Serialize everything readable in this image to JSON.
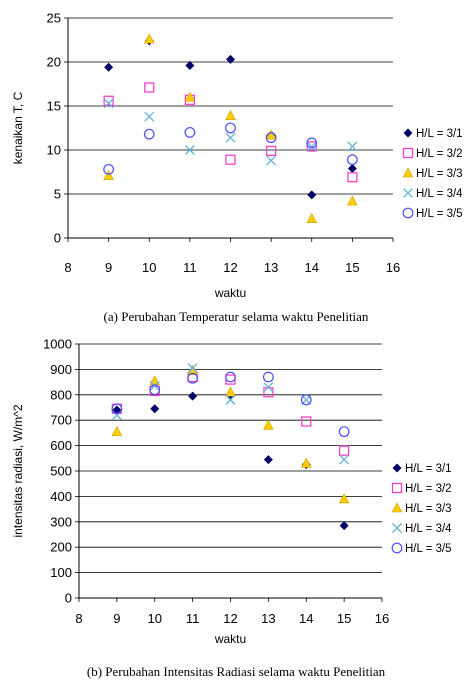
{
  "chart_data": [
    {
      "type": "scatter",
      "caption": "(a) Perubahan Temperatur selama waktu Penelitian",
      "xlabel": "waktu",
      "ylabel": "kenaikan T, C",
      "xlim": [
        8,
        16
      ],
      "ylim": [
        0,
        25
      ],
      "xticks": [
        "8",
        "9",
        "10",
        "11",
        "12",
        "13",
        "14",
        "15",
        "16"
      ],
      "yticks": [
        "0",
        "5",
        "10",
        "15",
        "20",
        "25"
      ],
      "grid": "horizontal",
      "legend_position": "right",
      "series": [
        {
          "name": "H/L = 3/1",
          "marker": "diamond-filled",
          "color": "#000066",
          "x": [
            9,
            10,
            11,
            12,
            13,
            14,
            15
          ],
          "y": [
            19.4,
            22.4,
            19.6,
            20.3,
            11.7,
            4.9,
            7.9
          ]
        },
        {
          "name": "H/L = 3/2",
          "marker": "square-open",
          "color": "#ff33cc",
          "x": [
            9,
            10,
            11,
            12,
            13,
            14,
            15
          ],
          "y": [
            15.6,
            17.1,
            15.7,
            8.9,
            9.9,
            10.4,
            6.9
          ]
        },
        {
          "name": "H/L = 3/3",
          "marker": "triangle-filled",
          "color": "#ffcc00",
          "x": [
            9,
            10,
            11,
            12,
            13,
            14,
            15
          ],
          "y": [
            7.1,
            22.6,
            16.0,
            13.9,
            11.7,
            2.2,
            4.2
          ]
        },
        {
          "name": "H/L = 3/4",
          "marker": "x",
          "color": "#66b2dd",
          "x": [
            9,
            10,
            11,
            12,
            13,
            14,
            15
          ],
          "y": [
            15.3,
            13.8,
            10.0,
            11.4,
            8.8,
            10.4,
            10.4
          ]
        },
        {
          "name": "H/L = 3/5",
          "marker": "circle-open",
          "color": "#4d4dff",
          "x": [
            9,
            10,
            11,
            12,
            13,
            14,
            15
          ],
          "y": [
            7.8,
            11.8,
            12.0,
            12.5,
            11.4,
            10.8,
            8.9
          ]
        }
      ]
    },
    {
      "type": "scatter",
      "caption": "(b) Perubahan Intensitas Radiasi selama waktu Penelitian",
      "xlabel": "waktu",
      "ylabel": "intensitas radiasi, W/m^2",
      "xlim": [
        8,
        16
      ],
      "ylim": [
        0,
        1000
      ],
      "xticks": [
        "8",
        "9",
        "10",
        "11",
        "12",
        "13",
        "14",
        "15",
        "16"
      ],
      "yticks": [
        "0",
        "100",
        "200",
        "300",
        "400",
        "500",
        "600",
        "700",
        "800",
        "900",
        "1000"
      ],
      "grid": "horizontal",
      "legend_position": "right",
      "series": [
        {
          "name": "H/L = 3/1",
          "marker": "diamond-filled",
          "color": "#000066",
          "x": [
            9,
            10,
            11,
            12,
            13,
            14,
            15
          ],
          "y": [
            740,
            745,
            795,
            800,
            545,
            525,
            285
          ]
        },
        {
          "name": "H/L = 3/2",
          "marker": "square-open",
          "color": "#ff33cc",
          "x": [
            9,
            10,
            11,
            12,
            13,
            14,
            15
          ],
          "y": [
            745,
            815,
            870,
            860,
            810,
            695,
            580
          ]
        },
        {
          "name": "H/L = 3/3",
          "marker": "triangle-filled",
          "color": "#ffcc00",
          "x": [
            9,
            10,
            11,
            12,
            13,
            14,
            15
          ],
          "y": [
            655,
            855,
            895,
            810,
            680,
            530,
            390
          ]
        },
        {
          "name": "H/L = 3/4",
          "marker": "x",
          "color": "#66b2dd",
          "x": [
            9,
            10,
            11,
            12,
            13,
            14,
            15
          ],
          "y": [
            720,
            835,
            905,
            780,
            830,
            780,
            545
          ]
        },
        {
          "name": "H/L = 3/5",
          "marker": "circle-open",
          "color": "#4d4dff",
          "x": [
            9,
            10,
            11,
            12,
            13,
            14,
            15
          ],
          "y": [
            745,
            820,
            865,
            870,
            870,
            780,
            655
          ]
        }
      ]
    }
  ]
}
